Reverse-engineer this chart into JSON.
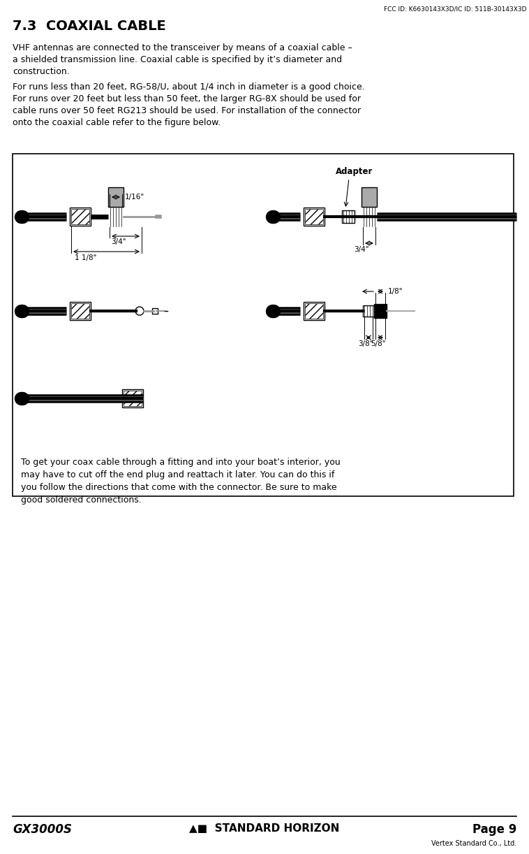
{
  "fcc_id_text": "FCC ID: K6630143X3D/IC ID: 511B-30143X3D",
  "section_title": "7.3  COAXIAL CABLE",
  "para1": "VHF antennas are connected to the transceiver by means of a coaxial cable –\na shielded transmission line. Coaxial cable is specified by it’s diameter and\nconstruction.",
  "para2": "For runs less than 20 feet, RG-58/U, about 1/4 inch in diameter is a good choice.\nFor runs over 20 feet but less than 50 feet, the larger RG-8X should be used for\ncable runs over 50 feet RG213 should be used. For installation of the connector\nonto the coaxial cable refer to the figure below.",
  "para3": "To get your coax cable through a fitting and into your boat’s interior, you\nmay have to cut off the end plug and reattach it later. You can do this if\nyou follow the directions that come with the connector. Be sure to make\ngood soldered connections.",
  "footer_left": "GX3000S",
  "footer_right": "Page 9",
  "footer_company": "Vertex Standard Co., Ltd.",
  "bg_color": "#ffffff",
  "text_color": "#000000",
  "box_bg": "#ffffff",
  "box_border": "#000000",
  "adapter_label": "Adapter"
}
